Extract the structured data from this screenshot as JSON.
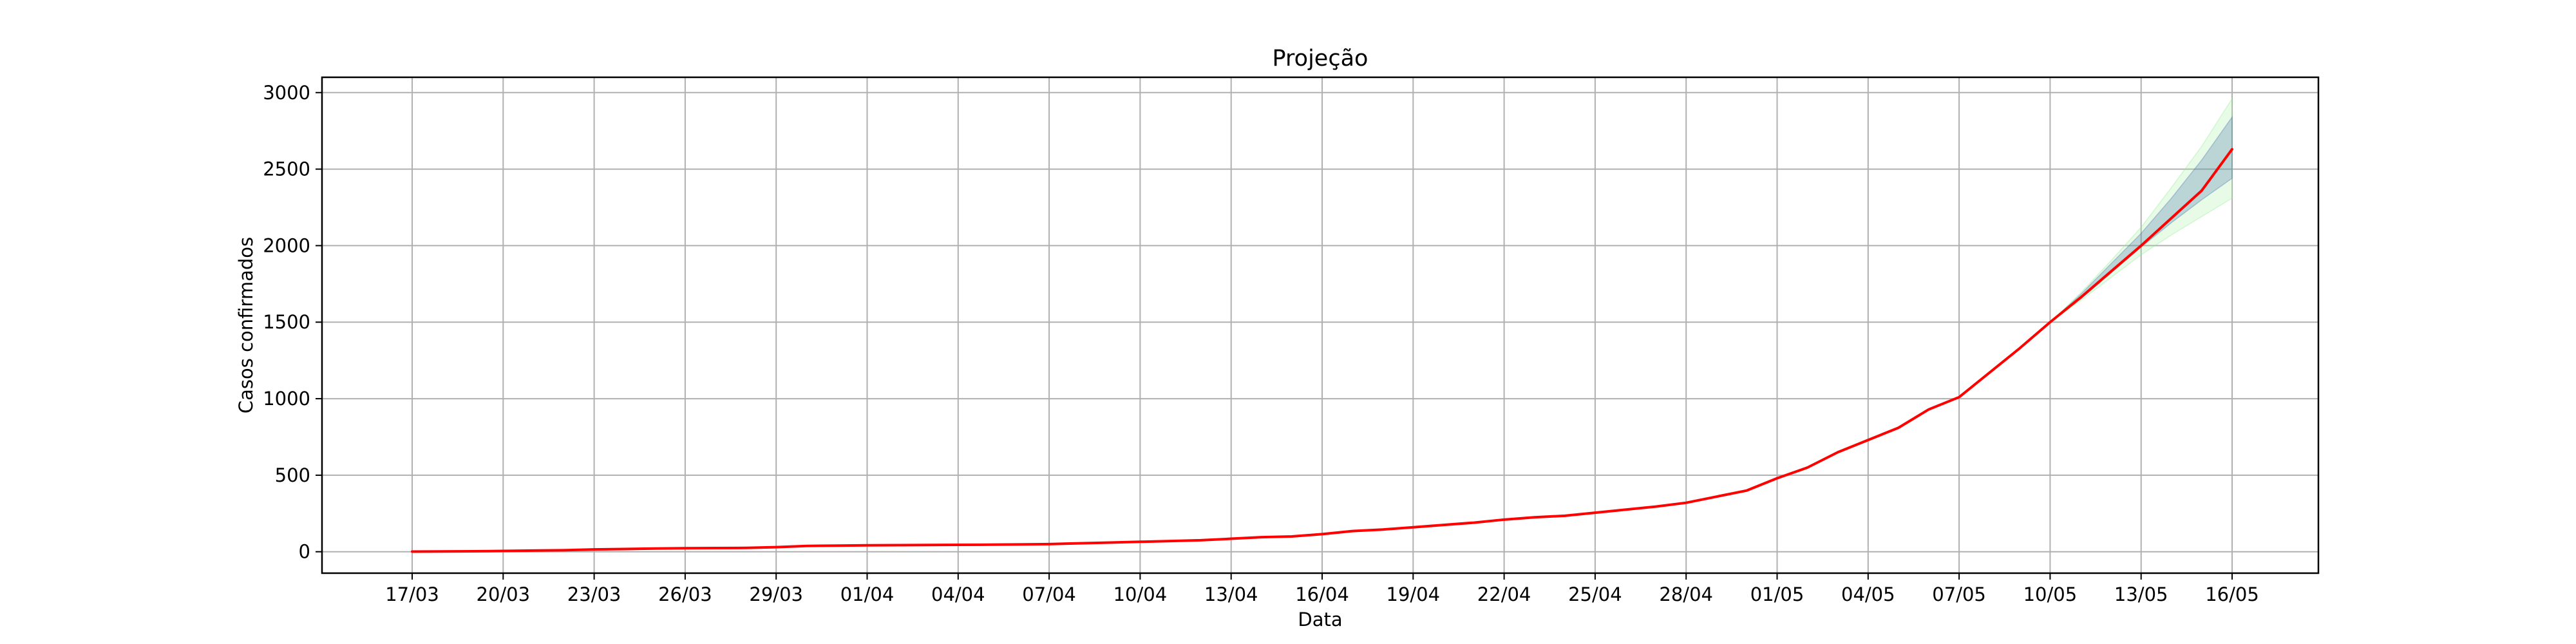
{
  "chart_data": {
    "type": "line",
    "title": "Projeção",
    "xlabel": "Data",
    "ylabel": "Casos confirmados",
    "ylim": [
      -140,
      3100
    ],
    "yticks": [
      "0",
      "500",
      "1000",
      "1500",
      "2000",
      "2500",
      "3000"
    ],
    "ytick_values": [
      0,
      500,
      1000,
      1500,
      2000,
      2500,
      3000
    ],
    "xticks": [
      "17/03",
      "20/03",
      "23/03",
      "26/03",
      "29/03",
      "01/04",
      "04/04",
      "07/04",
      "10/04",
      "13/04",
      "16/04",
      "19/04",
      "22/04",
      "25/04",
      "28/04",
      "01/05",
      "04/05",
      "07/05",
      "10/05",
      "13/05",
      "16/05"
    ],
    "grid": true,
    "series": [
      {
        "color": "#ff0000",
        "x": [
          "17/03",
          "18/03",
          "19/03",
          "20/03",
          "21/03",
          "22/03",
          "23/03",
          "24/03",
          "25/03",
          "26/03",
          "27/03",
          "28/03",
          "29/03",
          "30/03",
          "31/03",
          "01/04",
          "02/04",
          "03/04",
          "04/04",
          "05/04",
          "06/04",
          "07/04",
          "08/04",
          "09/04",
          "10/04",
          "11/04",
          "12/04",
          "13/04",
          "14/04",
          "15/04",
          "16/04",
          "17/04",
          "18/04",
          "19/04",
          "20/04",
          "21/04",
          "22/04",
          "23/04",
          "24/04",
          "25/04",
          "26/04",
          "27/04",
          "28/04",
          "29/04",
          "30/04",
          "01/05",
          "02/05",
          "03/05",
          "04/05",
          "05/05",
          "06/05",
          "07/05",
          "08/05",
          "09/05",
          "10/05",
          "11/05",
          "12/05",
          "13/05",
          "14/05",
          "15/05",
          "16/05"
        ],
        "values": [
          1,
          2,
          3,
          5,
          8,
          10,
          15,
          18,
          21,
          23,
          24,
          25,
          30,
          38,
          40,
          42,
          43,
          44,
          45,
          46,
          48,
          50,
          55,
          60,
          65,
          70,
          75,
          85,
          95,
          100,
          115,
          135,
          145,
          160,
          175,
          190,
          210,
          225,
          235,
          255,
          275,
          295,
          320,
          360,
          400,
          480,
          550,
          650,
          730,
          810,
          930,
          1010,
          1170,
          1330,
          1500,
          1660,
          1830,
          2000,
          2180,
          2360,
          2630
        ]
      }
    ],
    "bands": [
      {
        "color": "#90ee90",
        "x": [
          "10/05",
          "11/05",
          "12/05",
          "13/05",
          "14/05",
          "15/05",
          "16/05"
        ],
        "lower": [
          1500,
          1640,
          1790,
          1940,
          2070,
          2190,
          2310
        ],
        "upper": [
          1500,
          1690,
          1900,
          2120,
          2380,
          2650,
          2960
        ]
      },
      {
        "color": "#4a72b0",
        "x": [
          "10/05",
          "11/05",
          "12/05",
          "13/05",
          "14/05",
          "15/05",
          "16/05"
        ],
        "lower": [
          1500,
          1650,
          1820,
          1990,
          2150,
          2300,
          2440
        ],
        "upper": [
          1500,
          1680,
          1880,
          2080,
          2310,
          2560,
          2840
        ]
      }
    ]
  }
}
